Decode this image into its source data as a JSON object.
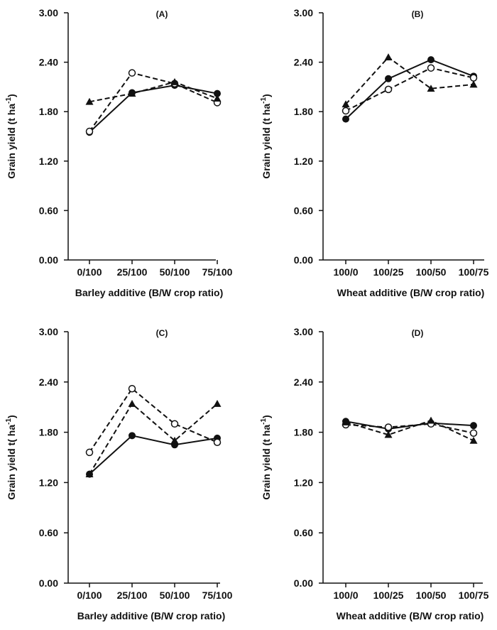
{
  "chart_data": [
    {
      "type": "line",
      "panel_label": "(A)",
      "categories": [
        "0/100",
        "25/100",
        "50/100",
        "75/100"
      ],
      "xlabel": "Barley additive (B/W crop ratio)",
      "ylabel": "Grain yield (t ha",
      "ylabel_sup": "-1",
      "ylabel_suffix": ")",
      "yticks": [
        "0.00",
        "0.60",
        "1.20",
        "1.80",
        "2.40",
        "3.00"
      ],
      "ylim": [
        0,
        3.0
      ],
      "series": [
        {
          "marker": "filled-circle",
          "dash": "solid",
          "values": [
            1.55,
            2.03,
            2.12,
            2.02
          ]
        },
        {
          "marker": "open-circle",
          "dash": "dashed",
          "values": [
            1.56,
            2.27,
            2.14,
            1.91
          ]
        },
        {
          "marker": "filled-triangle",
          "dash": "dashed",
          "values": [
            1.92,
            2.02,
            2.16,
            1.96
          ]
        }
      ]
    },
    {
      "type": "line",
      "panel_label": "(B)",
      "categories": [
        "100/0",
        "100/25",
        "100/50",
        "100/75"
      ],
      "xlabel": "Wheat additive (B/W crop ratio)",
      "ylabel": "Grain yield (t ha",
      "ylabel_sup": "-1",
      "ylabel_suffix": ")",
      "yticks": [
        "0.00",
        "0.60",
        "1.20",
        "1.80",
        "2.40",
        "3.00"
      ],
      "ylim": [
        0,
        3.0
      ],
      "series": [
        {
          "marker": "filled-circle",
          "dash": "solid",
          "values": [
            1.71,
            2.2,
            2.43,
            2.23
          ]
        },
        {
          "marker": "open-circle",
          "dash": "dashed",
          "values": [
            1.81,
            2.07,
            2.33,
            2.21
          ]
        },
        {
          "marker": "filled-triangle",
          "dash": "dashed",
          "values": [
            1.89,
            2.46,
            2.08,
            2.13
          ]
        }
      ]
    },
    {
      "type": "line",
      "panel_label": "(C)",
      "categories": [
        "0/100",
        "25/100",
        "50/100",
        "75/100"
      ],
      "xlabel": "Barley additive (B/W crop ratio)",
      "ylabel": "Grain yield t( ha",
      "ylabel_sup": "-1",
      "ylabel_suffix": ")",
      "yticks": [
        "0.00",
        "0.60",
        "1.20",
        "1.80",
        "2.40",
        "3.00"
      ],
      "ylim": [
        0,
        3.0
      ],
      "series": [
        {
          "marker": "filled-circle",
          "dash": "solid",
          "values": [
            1.3,
            1.76,
            1.65,
            1.73
          ]
        },
        {
          "marker": "open-circle",
          "dash": "dashed",
          "values": [
            1.56,
            2.32,
            1.9,
            1.68
          ]
        },
        {
          "marker": "filled-triangle",
          "dash": "dashed",
          "values": [
            1.3,
            2.14,
            1.7,
            2.14
          ]
        }
      ]
    },
    {
      "type": "line",
      "panel_label": "(D)",
      "categories": [
        "100/0",
        "100/25",
        "100/50",
        "100/75"
      ],
      "xlabel": "Wheat additive (B/W crop ratio)",
      "ylabel": "Grain yield (t ha",
      "ylabel_sup": "-1",
      "ylabel_suffix": ")",
      "yticks": [
        "0.00",
        "0.60",
        "1.20",
        "1.80",
        "2.40",
        "3.00"
      ],
      "ylim": [
        0,
        3.0
      ],
      "series": [
        {
          "marker": "filled-circle",
          "dash": "solid",
          "values": [
            1.93,
            1.84,
            1.91,
            1.88
          ]
        },
        {
          "marker": "open-circle",
          "dash": "dashed",
          "values": [
            1.89,
            1.86,
            1.9,
            1.79
          ]
        },
        {
          "marker": "filled-triangle",
          "dash": "dashed",
          "values": [
            1.92,
            1.77,
            1.94,
            1.7
          ]
        }
      ]
    }
  ],
  "colors": {
    "ink": "#111111",
    "background": "#ffffff"
  }
}
